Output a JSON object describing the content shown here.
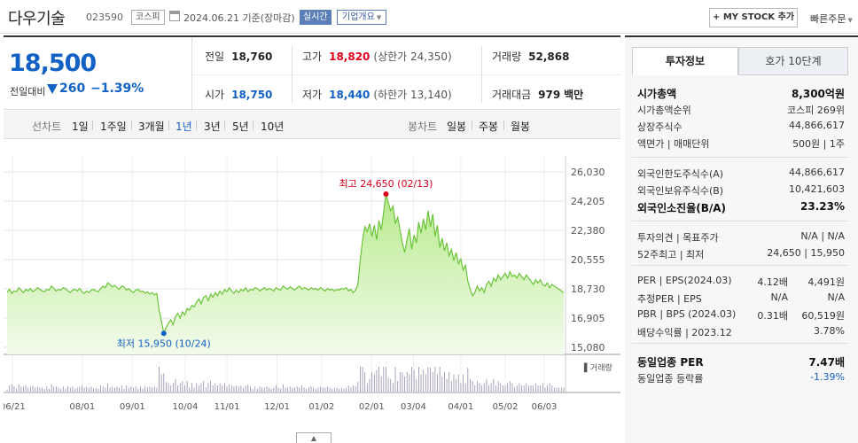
{
  "header": {
    "name": "다우기술",
    "code": "023590",
    "market": "코스피",
    "date": "2024.06.21 기준(장마감)",
    "realtime": "실시간",
    "company_info": "기업개요",
    "mystock": "+ MY STOCK 추가",
    "quick_order": "빠른주문"
  },
  "price": {
    "current": "18,500",
    "change_label": "전일대비",
    "change": "260",
    "change_pct": "−1.39%",
    "prev_label": "전일",
    "prev": "18,760",
    "high_label": "고가",
    "high": "18,820",
    "upper_limit": "(상한가 24,350)",
    "volume_label": "거래량",
    "volume": "52,868",
    "open_label": "시가",
    "open": "18,750",
    "low_label": "저가",
    "low": "18,440",
    "lower_limit": "(하한가 13,140)",
    "amount_label": "거래대금",
    "amount": "979",
    "amount_unit": "백만"
  },
  "periods": {
    "line_label": "선차트",
    "line_items": [
      "1일",
      "1주일",
      "3개월",
      "1년",
      "3년",
      "5년",
      "10년"
    ],
    "active": "1년",
    "candle_label": "봉차트",
    "candle_items": [
      "일봉",
      "주봉",
      "월봉"
    ]
  },
  "chart_data": {
    "type": "area",
    "series": [
      {
        "values": [
          18500,
          18700,
          18450,
          18600,
          18550,
          18800,
          18650,
          18500,
          18700,
          18600,
          18750,
          18550,
          18650,
          18800,
          18700,
          18600,
          18550,
          18700,
          18650,
          18900,
          18750,
          18600,
          18700,
          18650,
          18800,
          18750,
          18600,
          18500,
          18650,
          18700,
          18600,
          18750,
          18550,
          18450,
          18600,
          18500,
          18650,
          18700,
          18600,
          18550,
          18750,
          18900,
          18800,
          19100,
          19000,
          18850,
          18950,
          18800,
          18700,
          18900,
          18850,
          18650,
          18750,
          18600,
          18500,
          18650,
          18700,
          18550,
          18600,
          18450,
          18550,
          18400,
          18500,
          18350,
          18450,
          17400,
          16700,
          15950,
          16300,
          16600,
          16800,
          16500,
          17000,
          17200,
          16900,
          17300,
          17100,
          17500,
          17400,
          17700,
          17600,
          17900,
          18100,
          17800,
          18200,
          18300,
          18000,
          18400,
          18200,
          18500,
          18300,
          18600,
          18400,
          18700,
          18550,
          18800,
          18600,
          18450,
          18650,
          18500,
          18700,
          18600,
          18800,
          18550,
          18700,
          18650,
          18800,
          18750,
          18600,
          18700,
          18800,
          18650,
          18750,
          18700,
          18600,
          18800,
          18700,
          18650,
          18900,
          18800,
          18700,
          18850,
          18750,
          18650,
          18800,
          18900,
          18700,
          18800,
          18750,
          18650,
          18800,
          18700,
          18750,
          18650,
          18800,
          18700,
          18600,
          18750,
          18650,
          18700,
          18600,
          18700,
          18650,
          18750,
          18700,
          18800,
          18600,
          18700,
          18500,
          18650,
          19000,
          20500,
          21800,
          22600,
          22300,
          22800,
          22000,
          22700,
          21800,
          23000,
          22400,
          23500,
          24650,
          24100,
          23600,
          23900,
          22800,
          23200,
          22400,
          21600,
          21000,
          21800,
          22500,
          21200,
          22100,
          21600,
          22900,
          22200,
          23100,
          22400,
          23600,
          22600,
          23400,
          22000,
          22700,
          21300,
          21900,
          21100,
          21600,
          20800,
          21200,
          20500,
          21000,
          20300,
          20600,
          19900,
          20200,
          19200,
          18700,
          18300,
          18500,
          18900,
          18600,
          18800,
          18500,
          19000,
          19200,
          18900,
          19400,
          19200,
          19600,
          19300,
          19500,
          19700,
          19400,
          19800,
          19500,
          19600,
          19400,
          19700,
          19500,
          19300,
          19600,
          19400,
          19200,
          19000,
          19300,
          19100,
          19300,
          19000,
          18900,
          19100,
          18800,
          19000,
          18900,
          18800,
          18700,
          18600,
          18500
        ]
      }
    ],
    "x_ticks": [
      "06/21",
      "08/01",
      "09/01",
      "10/04",
      "11/01",
      "12/01",
      "01/02",
      "02/01",
      "03/04",
      "04/01",
      "05/02",
      "06/03"
    ],
    "y_ticks": [
      26030,
      24205,
      22380,
      20555,
      18730,
      16905,
      15080
    ],
    "ylim": [
      15080,
      26030
    ],
    "high_label": "최고 24,650 (02/13)",
    "low_label": "최저 15,950 (10/24)",
    "volume_label": "거래량",
    "grid": true
  },
  "side": {
    "tabs": [
      "투자정보",
      "호가 10단계"
    ],
    "g1": [
      {
        "k": "시가총액",
        "v": "8,300억원",
        "bold": true
      },
      {
        "k": "시가총액순위",
        "v": "코스피 269위"
      },
      {
        "k": "상장주식수",
        "v": "44,866,617"
      },
      {
        "k": "액면가 | 매매단위",
        "v": "500원 | 1주"
      }
    ],
    "g2": [
      {
        "k": "외국인한도주식수(A)",
        "v": "44,866,617"
      },
      {
        "k": "외국인보유주식수(B)",
        "v": "10,421,603"
      },
      {
        "k": "외국인소진율(B/A)",
        "v": "23.23%",
        "bold": true
      }
    ],
    "g3": [
      {
        "k": "투자의견 | 목표주가",
        "v": "N/A | N/A"
      },
      {
        "k": "52주최고 | 최저",
        "v": "24,650 | 15,950"
      }
    ],
    "g4": [
      {
        "k": "PER | EPS(2024.03)",
        "v1": "4.12배",
        "v": "4,491원"
      },
      {
        "k": "추정PER | EPS",
        "v1": "N/A",
        "v": "N/A"
      },
      {
        "k": "PBR | BPS (2024.03)",
        "v1": "0.31배",
        "v": "60,519원"
      },
      {
        "k": "배당수익률 | 2023.12",
        "v": "3.78%"
      }
    ],
    "g5": [
      {
        "k": "동일업종 PER",
        "v": "7.47배",
        "bold": true
      },
      {
        "k": "동일업종 등락률",
        "v": "-1.39%",
        "blue": true
      }
    ]
  }
}
